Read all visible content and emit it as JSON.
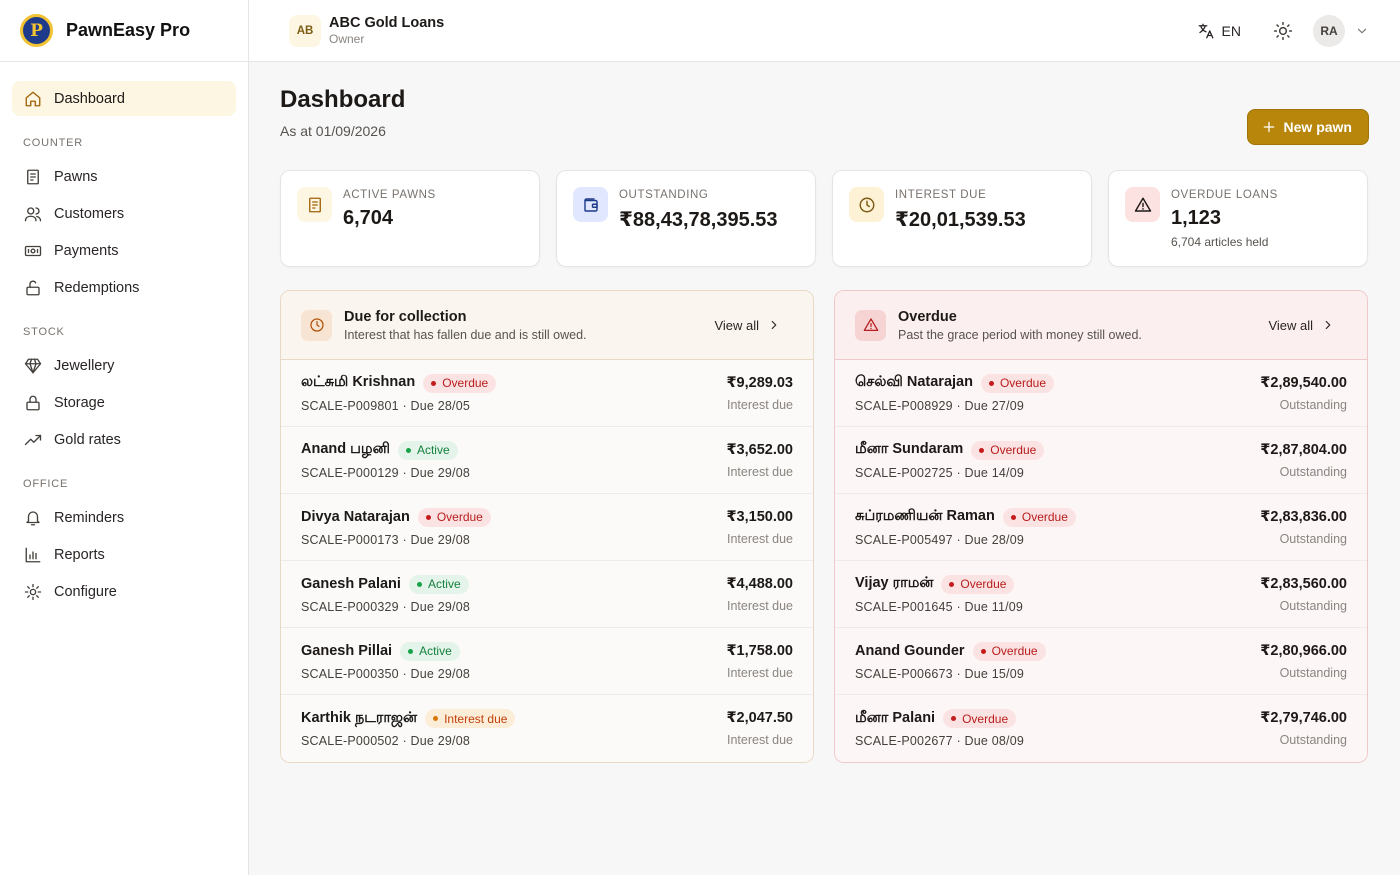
{
  "brand": {
    "name": "PawnEasy Pro",
    "logo_letter": "P"
  },
  "sidebar": {
    "items": [
      {
        "label": "Dashboard",
        "icon": "home-icon",
        "active": true
      }
    ],
    "sections": [
      {
        "title": "COUNTER",
        "items": [
          {
            "label": "Pawns",
            "icon": "receipt-icon"
          },
          {
            "label": "Customers",
            "icon": "users-icon"
          },
          {
            "label": "Payments",
            "icon": "banknote-icon"
          },
          {
            "label": "Redemptions",
            "icon": "unlock-icon"
          }
        ]
      },
      {
        "title": "STOCK",
        "items": [
          {
            "label": "Jewellery",
            "icon": "gem-icon"
          },
          {
            "label": "Storage",
            "icon": "lock-icon"
          },
          {
            "label": "Gold rates",
            "icon": "trending-up-icon"
          }
        ]
      },
      {
        "title": "OFFICE",
        "items": [
          {
            "label": "Reminders",
            "icon": "bell-icon"
          },
          {
            "label": "Reports",
            "icon": "bar-chart-icon"
          },
          {
            "label": "Configure",
            "icon": "sun-gear-icon"
          }
        ]
      }
    ]
  },
  "header": {
    "org_initials": "AB",
    "org_name": "ABC Gold Loans",
    "org_role": "Owner",
    "language": "EN",
    "user_initials": "RA"
  },
  "page": {
    "title": "Dashboard",
    "subtitle": "As at 01/09/2026",
    "new_button": "New pawn"
  },
  "stats": [
    {
      "label": "ACTIVE PAWNS",
      "value": "6,704",
      "note": "",
      "icon": "receipt-icon",
      "bg": "#fdf6e3",
      "fg": "#a16207"
    },
    {
      "label": "OUTSTANDING",
      "value": "₹88,43,78,395.53",
      "note": "",
      "icon": "wallet-icon",
      "bg": "#e0e7ff",
      "fg": "#1e3a8a"
    },
    {
      "label": "INTEREST DUE",
      "value": "₹20,01,539.53",
      "note": "",
      "icon": "clock-icon",
      "bg": "#fdf1d6",
      "fg": "#7c5c12"
    },
    {
      "label": "OVERDUE LOANS",
      "value": "1,123",
      "note": "6,704 articles held",
      "icon": "alert-triangle-icon",
      "bg": "#fde2e2",
      "fg": "#1c1917"
    }
  ],
  "panels": {
    "due": {
      "title": "Due for collection",
      "subtitle": "Interest that has fallen due and is still owed.",
      "view_all": "View all",
      "rows": [
        {
          "name": "லட்சுமி Krishnan",
          "status": "Overdue",
          "kind": "overdue",
          "meta": "SCALE-P009801 · Due 28/05",
          "amount": "₹9,289.03",
          "caption": "Interest due"
        },
        {
          "name": "Anand பழனி",
          "status": "Active",
          "kind": "active",
          "meta": "SCALE-P000129 · Due 29/08",
          "amount": "₹3,652.00",
          "caption": "Interest due"
        },
        {
          "name": "Divya Natarajan",
          "status": "Overdue",
          "kind": "overdue",
          "meta": "SCALE-P000173 · Due 29/08",
          "amount": "₹3,150.00",
          "caption": "Interest due"
        },
        {
          "name": "Ganesh Palani",
          "status": "Active",
          "kind": "active",
          "meta": "SCALE-P000329 · Due 29/08",
          "amount": "₹4,488.00",
          "caption": "Interest due"
        },
        {
          "name": "Ganesh Pillai",
          "status": "Active",
          "kind": "active",
          "meta": "SCALE-P000350 · Due 29/08",
          "amount": "₹1,758.00",
          "caption": "Interest due"
        },
        {
          "name": "Karthik நடராஜன்",
          "status": "Interest due",
          "kind": "interest",
          "meta": "SCALE-P000502 · Due 29/08",
          "amount": "₹2,047.50",
          "caption": "Interest due"
        }
      ]
    },
    "overdue": {
      "title": "Overdue",
      "subtitle": "Past the grace period with money still owed.",
      "view_all": "View all",
      "rows": [
        {
          "name": "செல்வி Natarajan",
          "status": "Overdue",
          "kind": "overdue",
          "meta": "SCALE-P008929 · Due 27/09",
          "amount": "₹2,89,540.00",
          "caption": "Outstanding"
        },
        {
          "name": "மீனா Sundaram",
          "status": "Overdue",
          "kind": "overdue",
          "meta": "SCALE-P002725 · Due 14/09",
          "amount": "₹2,87,804.00",
          "caption": "Outstanding"
        },
        {
          "name": "சுப்ரமணியன் Raman",
          "status": "Overdue",
          "kind": "overdue",
          "meta": "SCALE-P005497 · Due 28/09",
          "amount": "₹2,83,836.00",
          "caption": "Outstanding"
        },
        {
          "name": "Vijay ராமன்",
          "status": "Overdue",
          "kind": "overdue",
          "meta": "SCALE-P001645 · Due 11/09",
          "amount": "₹2,83,560.00",
          "caption": "Outstanding"
        },
        {
          "name": "Anand Gounder",
          "status": "Overdue",
          "kind": "overdue",
          "meta": "SCALE-P006673 · Due 15/09",
          "amount": "₹2,80,966.00",
          "caption": "Outstanding"
        },
        {
          "name": "மீனா Palani",
          "status": "Overdue",
          "kind": "overdue",
          "meta": "SCALE-P002677 · Due 08/09",
          "amount": "₹2,79,746.00",
          "caption": "Outstanding"
        }
      ]
    }
  }
}
